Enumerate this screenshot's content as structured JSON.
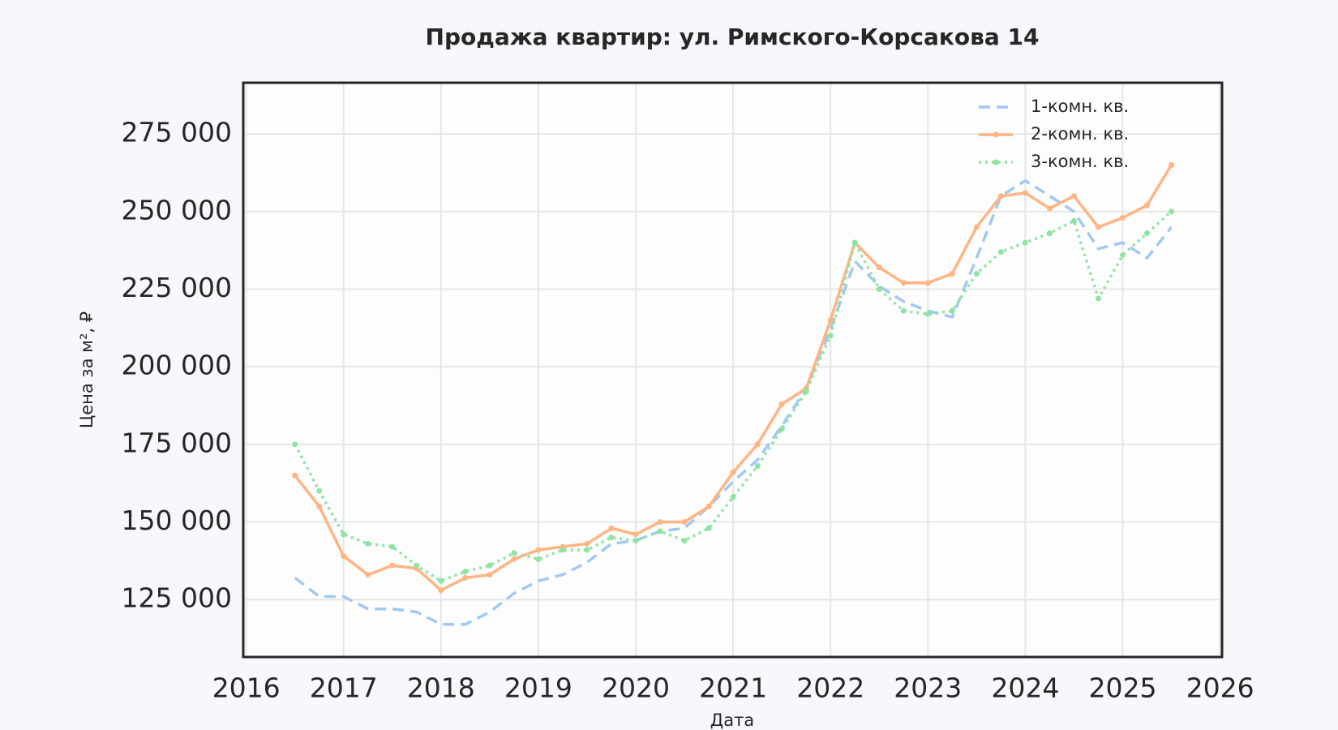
{
  "chart_data": {
    "type": "line",
    "title": "Продажа квартир: ул. Римского-Корсакова 14",
    "xlabel": "Дата",
    "ylabel": "Цена за м², ₽",
    "x": [
      2016.5,
      2016.75,
      2017,
      2017.25,
      2017.5,
      2017.75,
      2018,
      2018.25,
      2018.5,
      2018.75,
      2019,
      2019.25,
      2019.5,
      2019.75,
      2020,
      2020.25,
      2020.5,
      2020.75,
      2021,
      2021.25,
      2021.5,
      2021.75,
      2022,
      2022.25,
      2022.5,
      2022.75,
      2023,
      2023.25,
      2023.5,
      2023.75,
      2024,
      2024.25,
      2024.5,
      2024.75,
      2025,
      2025.25,
      2025.5
    ],
    "series": [
      {
        "name": "1-комн. кв.",
        "color": "#a1c9f4",
        "linestyle": "dashed",
        "marker": false,
        "values": [
          132000,
          126000,
          126000,
          122000,
          122000,
          121000,
          117000,
          117000,
          121000,
          127000,
          131000,
          133000,
          137000,
          143000,
          144000,
          147000,
          148000,
          155000,
          163000,
          170000,
          181000,
          193000,
          212000,
          234000,
          226000,
          221000,
          218000,
          216000,
          235000,
          255000,
          260000,
          255000,
          250000,
          238000,
          240000,
          235000,
          245000
        ]
      },
      {
        "name": "2-комн. кв.",
        "color": "#ffb482",
        "linestyle": "solid",
        "marker": true,
        "values": [
          165000,
          155000,
          139000,
          133000,
          136000,
          135000,
          128000,
          132000,
          133000,
          138000,
          141000,
          142000,
          143000,
          148000,
          146000,
          150000,
          150000,
          155000,
          166000,
          175000,
          188000,
          193000,
          215000,
          240000,
          232000,
          227000,
          227000,
          230000,
          245000,
          255000,
          256000,
          251000,
          255000,
          245000,
          248000,
          252000,
          265000
        ]
      },
      {
        "name": "3-комн. кв.",
        "color": "#8de5a1",
        "linestyle": "dotted",
        "marker": true,
        "values": [
          175000,
          160000,
          146000,
          143000,
          142000,
          136000,
          131000,
          134000,
          136000,
          140000,
          138000,
          141000,
          141000,
          145000,
          144000,
          147000,
          144000,
          148000,
          158000,
          168000,
          180000,
          192000,
          210000,
          240000,
          225000,
          218000,
          217000,
          218000,
          230000,
          237000,
          240000,
          243000,
          247000,
          222000,
          236000,
          243000,
          250000
        ]
      }
    ],
    "xlim": [
      2015.97,
      2026.02
    ],
    "xticks": [
      2016,
      2017,
      2018,
      2019,
      2020,
      2021,
      2022,
      2023,
      2024,
      2025,
      2026
    ],
    "ylim": [
      106500,
      291500
    ],
    "yticks": [
      {
        "value": 125000,
        "label": "125 000"
      },
      {
        "value": 150000,
        "label": "150 000"
      },
      {
        "value": 175000,
        "label": "175 000"
      },
      {
        "value": 200000,
        "label": "200 000"
      },
      {
        "value": 225000,
        "label": "225 000"
      },
      {
        "value": 250000,
        "label": "250 000"
      },
      {
        "value": 275000,
        "label": "275 000"
      }
    ],
    "grid": true,
    "legend": "upper right"
  }
}
